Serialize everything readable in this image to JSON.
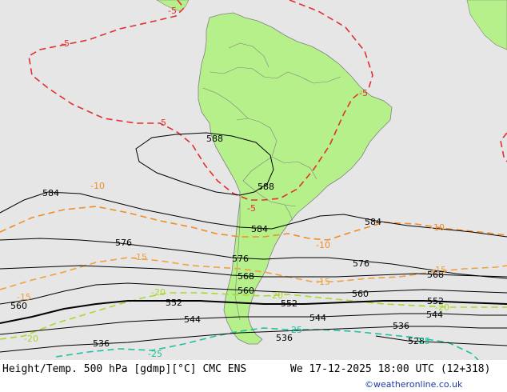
{
  "footer": {
    "left_title": "Height/Temp. 500 hPa [gdmp][°C] CMC ENS",
    "right_title": "We 17-12-2025 18:00 UTC (12+318)",
    "credit": "©weatheronline.co.uk"
  },
  "colors": {
    "ocean": "#e6e6e6",
    "land_highlight": "#b6f08a",
    "land_other": "#c8c8c8",
    "border": "#808080",
    "height_contour": "#000000",
    "temp_minus5": "#e03030",
    "temp_minus10": "#f08c28",
    "temp_minus15": "#f0a040",
    "temp_minus20": "#a8d830",
    "temp_minus25": "#20c0a0"
  },
  "height_labels": {
    "h588a": "588",
    "h588b": "588",
    "h584a": "584",
    "h584b": "584",
    "h584c": "584",
    "h576a": "576",
    "h576b": "576",
    "h576c": "576",
    "h568a": "568",
    "h568b": "568",
    "h560a": "560",
    "h560b": "560",
    "h560c": "560",
    "h552a": "552",
    "h552b": "552",
    "h552c": "552",
    "h544a": "544",
    "h544b": "544",
    "h544c": "544",
    "h536a": "536",
    "h536b": "536",
    "h536c": "536",
    "h528": "528"
  },
  "temp_labels": {
    "t5a": "-5",
    "t5b": "-5",
    "t5c": "-5",
    "t5d": "-5",
    "t5e": "-5",
    "t10a": "-10",
    "t10b": "-10",
    "t10c": "-10",
    "t15a": "-15",
    "t15b": "-15",
    "t15c": "-15",
    "t15d": "-15",
    "t20a": "-20",
    "t20b": "-20",
    "t20c": "-20",
    "t20d": "-20",
    "t25a": "-25",
    "t25b": "-25",
    "t25c": "-25"
  }
}
